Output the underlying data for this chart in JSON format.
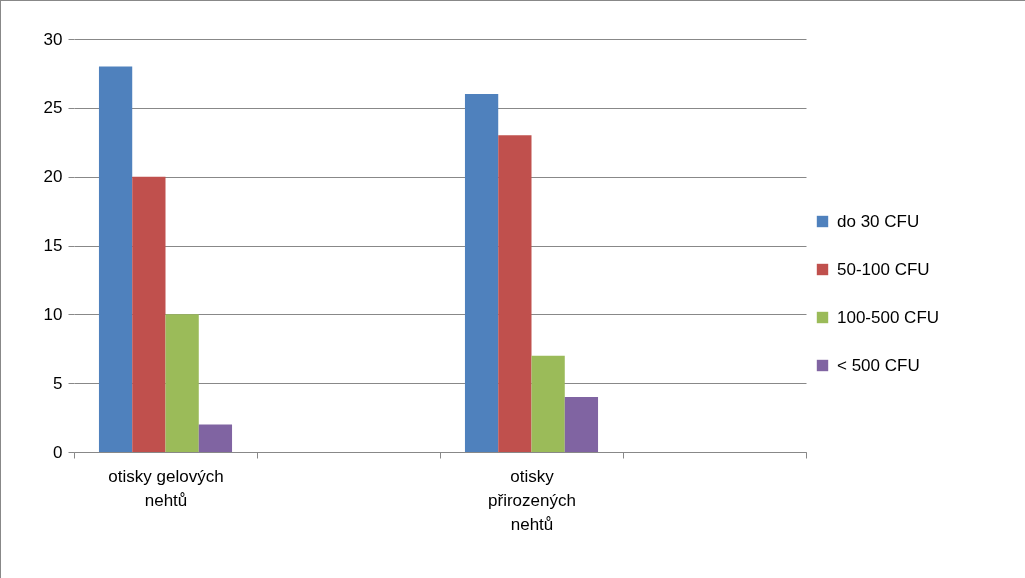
{
  "chart_data": {
    "type": "bar",
    "categories": [
      "otisky gelových nehtů",
      null,
      "otisky přirozených nehtů",
      null
    ],
    "series": [
      {
        "name": "do 30 CFU",
        "color": "#4f81bd",
        "values": [
          28,
          null,
          26,
          null
        ]
      },
      {
        "name": "50-100 CFU",
        "color": "#c0504d",
        "values": [
          20,
          null,
          23,
          null
        ]
      },
      {
        "name": "100-500 CFU",
        "color": "#9bbb59",
        "values": [
          10,
          null,
          7,
          null
        ]
      },
      {
        "name": "< 500 CFU",
        "color": "#8064a2",
        "values": [
          2,
          null,
          4,
          null
        ]
      }
    ],
    "ylim": [
      0,
      30
    ],
    "yticks": [
      0,
      5,
      10,
      15,
      20,
      25,
      30
    ],
    "grid": "y",
    "legend": "right"
  }
}
